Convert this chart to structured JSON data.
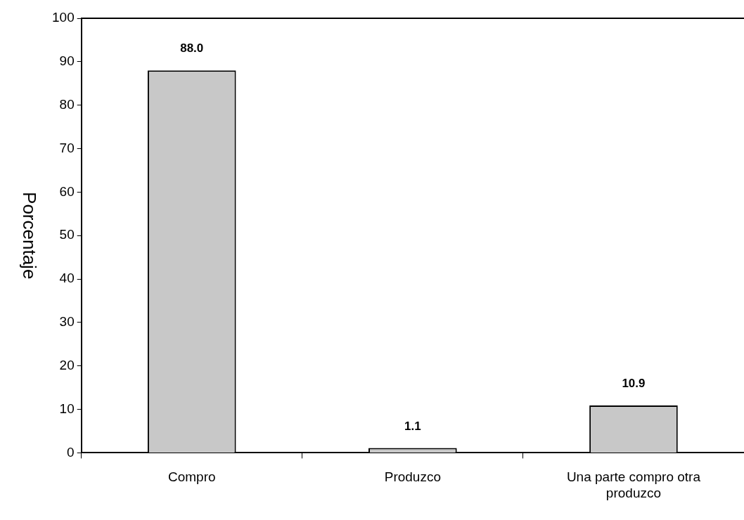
{
  "chart_data": {
    "type": "bar",
    "ylabel": "Porcentaje",
    "categories": [
      "Compro",
      "Produzco",
      "Una parte compro otra produzco"
    ],
    "values": [
      88.0,
      1.1,
      10.9
    ],
    "color": "#c8c8c8",
    "ylim": [
      0,
      100
    ],
    "yticks": [
      0,
      10,
      20,
      30,
      40,
      50,
      60,
      70,
      80,
      90,
      100
    ],
    "grid": false,
    "legend": false,
    "value_labels": [
      "88.0",
      "1.1",
      "10.9"
    ]
  }
}
